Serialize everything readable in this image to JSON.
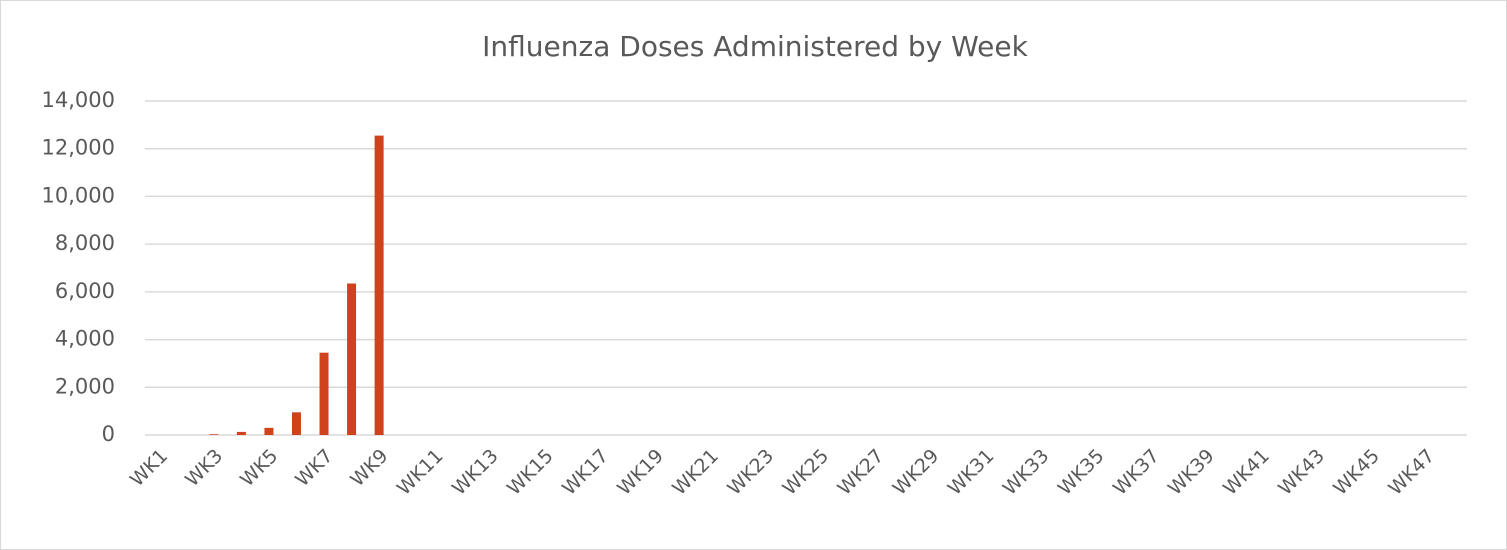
{
  "chart_data": {
    "type": "bar",
    "title": "Influenza Doses Administered by Week",
    "categories": [
      "WK1",
      null,
      "WK3",
      null,
      "WK5",
      null,
      "WK7",
      null,
      "WK9",
      null,
      "WK11",
      null,
      "WK13",
      null,
      "WK15",
      null,
      "WK17",
      null,
      "WK19",
      null,
      "WK21",
      null,
      "WK23",
      null,
      "WK25",
      null,
      "WK27",
      null,
      "WK29",
      null,
      "WK31",
      null,
      "WK33",
      null,
      "WK35",
      null,
      "WK37",
      null,
      "WK39",
      null,
      "WK41",
      null,
      "WK43",
      null,
      "WK45",
      null,
      "WK47",
      null
    ],
    "values": [
      0,
      0,
      30,
      130,
      300,
      950,
      3450,
      6350,
      12550,
      null,
      null,
      null,
      null,
      null,
      null,
      null,
      null,
      null,
      null,
      null,
      null,
      null,
      null,
      null,
      null,
      null,
      null,
      null,
      null,
      null,
      null,
      null,
      null,
      null,
      null,
      null,
      null,
      null,
      null,
      null,
      null,
      null,
      null,
      null,
      null,
      null,
      null,
      null
    ],
    "color": "#d0421b",
    "ylim": [
      0,
      14000
    ],
    "yticks": [
      0,
      {
        "value": 2000,
        "label": "2,000"
      },
      {
        "value": 4000,
        "label": "4,000"
      },
      {
        "value": 6000,
        "label": "6,000"
      },
      {
        "value": 8000,
        "label": "8,000"
      },
      {
        "value": 10000,
        "label": "10,000"
      },
      {
        "value": 12000,
        "label": "12,000"
      },
      {
        "value": 14000,
        "label": "14,000"
      }
    ],
    "grid": true
  }
}
